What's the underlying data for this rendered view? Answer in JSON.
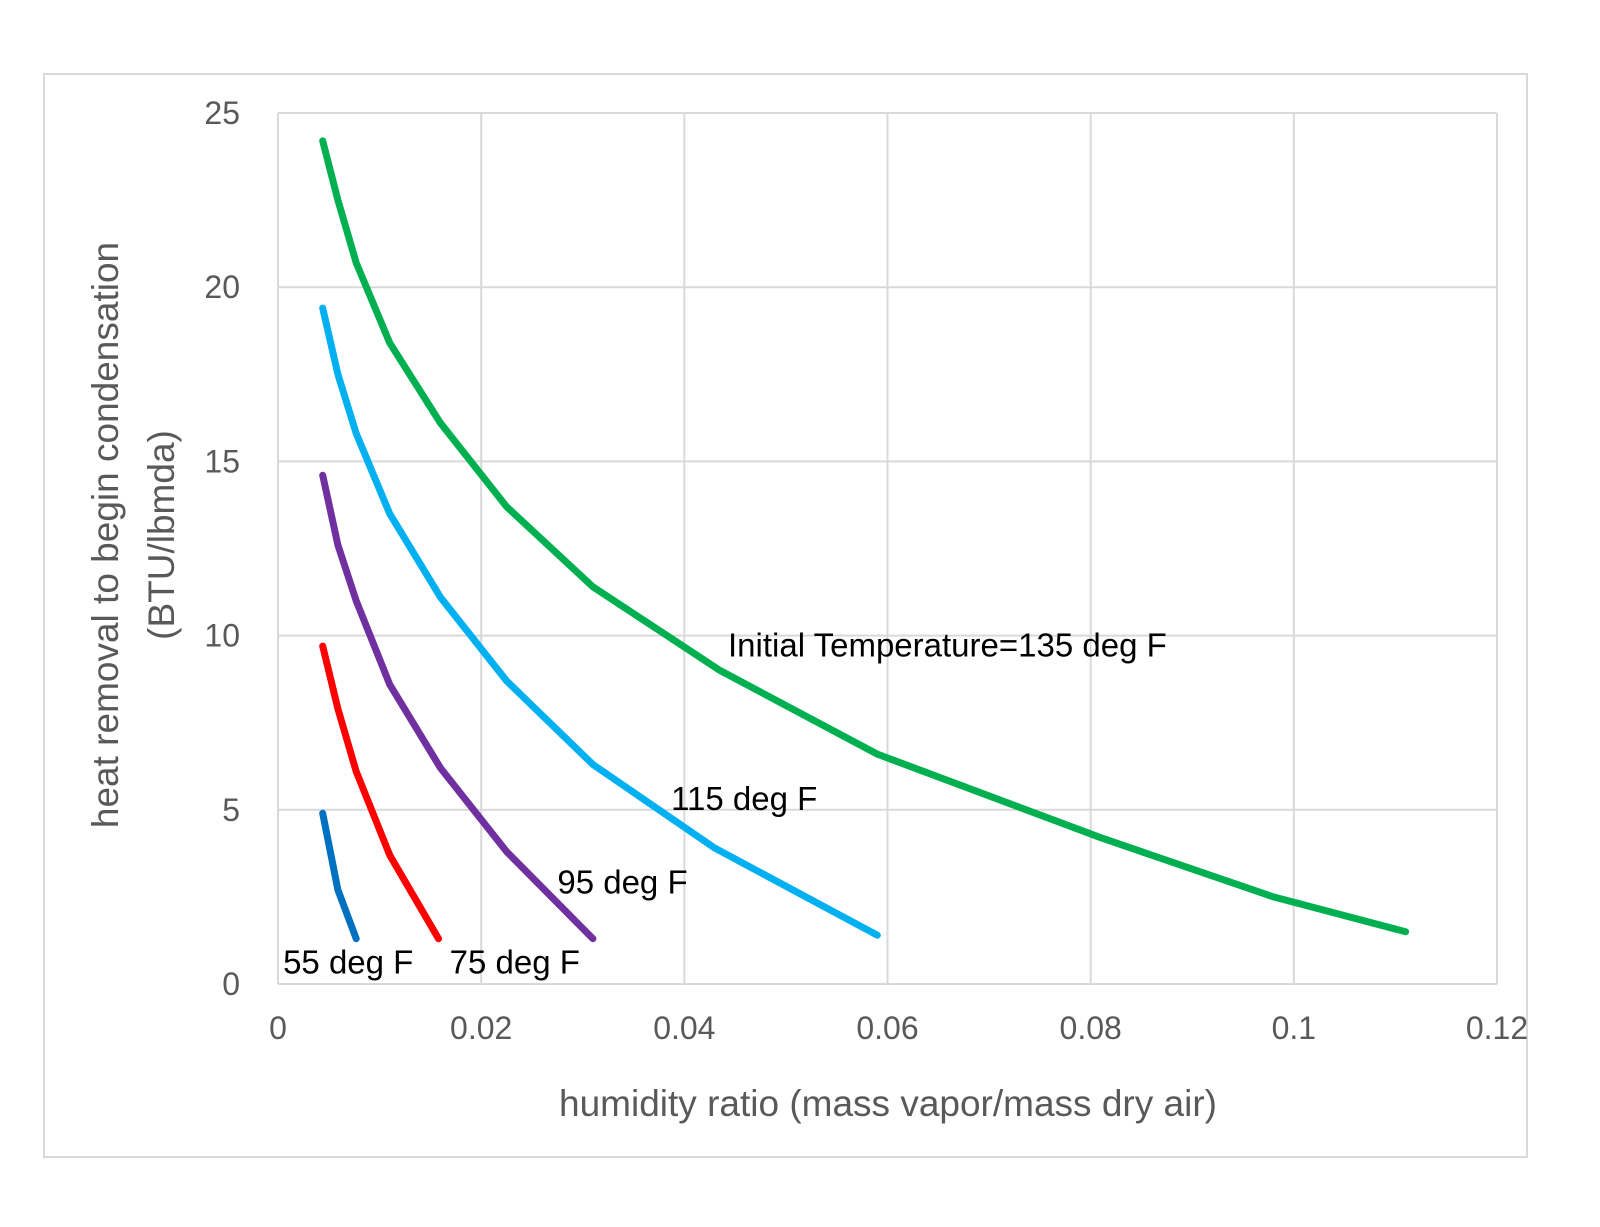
{
  "chart_data": {
    "type": "line",
    "xlabel": "humidity ratio (mass vapor/mass dry air)",
    "ylabel_lines": [
      "heat removal to begin condensation",
      "(BTU/lbmda)"
    ],
    "xlim": [
      0,
      0.12
    ],
    "ylim": [
      0,
      25
    ],
    "x_ticks": [
      0,
      0.02,
      0.04,
      0.06,
      0.08,
      0.1,
      0.12
    ],
    "x_tick_labels": [
      "0",
      "0.02",
      "0.04",
      "0.06",
      "0.08",
      "0.1",
      "0.12"
    ],
    "y_ticks": [
      0,
      5,
      10,
      15,
      20,
      25
    ],
    "y_tick_labels": [
      "0",
      "5",
      "10",
      "15",
      "20",
      "25"
    ],
    "grid": true,
    "legend": "none",
    "series": [
      {
        "label": "Initial Temperature=135 deg F",
        "color": "#00b050",
        "x": [
          0.0044,
          0.0059,
          0.0077,
          0.011,
          0.016,
          0.0225,
          0.031,
          0.0435,
          0.059,
          0.081,
          0.098,
          0.111
        ],
        "y": [
          24.2,
          22.5,
          20.7,
          18.4,
          16.1,
          13.7,
          11.4,
          9.0,
          6.6,
          4.2,
          2.5,
          1.5
        ]
      },
      {
        "label": "115 deg F",
        "color": "#00b0f0",
        "x": [
          0.0044,
          0.0059,
          0.0077,
          0.011,
          0.016,
          0.0225,
          0.031,
          0.043,
          0.059
        ],
        "y": [
          19.4,
          17.5,
          15.8,
          13.5,
          11.1,
          8.7,
          6.3,
          3.9,
          1.4
        ]
      },
      {
        "label": "95 deg F",
        "color": "#7030a0",
        "x": [
          0.0044,
          0.0059,
          0.0077,
          0.011,
          0.016,
          0.0225,
          0.031
        ],
        "y": [
          14.6,
          12.6,
          11.0,
          8.6,
          6.2,
          3.8,
          1.3
        ]
      },
      {
        "label": "75 deg F",
        "color": "#ff0000",
        "x": [
          0.0044,
          0.0059,
          0.0077,
          0.011,
          0.0158
        ],
        "y": [
          9.7,
          7.9,
          6.1,
          3.7,
          1.3
        ]
      },
      {
        "label": "55 deg F",
        "color": "#0070c0",
        "x": [
          0.0044,
          0.0059,
          0.0077
        ],
        "y": [
          4.9,
          2.7,
          1.3
        ]
      }
    ],
    "annotations": [
      {
        "text": "Initial Temperature=135 deg F",
        "x": 0.0443,
        "y": 9.4
      },
      {
        "text": "115 deg F",
        "x": 0.0387,
        "y": 5.0
      },
      {
        "text": "95 deg F",
        "x": 0.0275,
        "y": 2.6
      },
      {
        "text": "75 deg F",
        "x": 0.0169,
        "y": 0.3
      },
      {
        "text": "55 deg F",
        "x": 0.0005,
        "y": 0.3
      }
    ]
  }
}
